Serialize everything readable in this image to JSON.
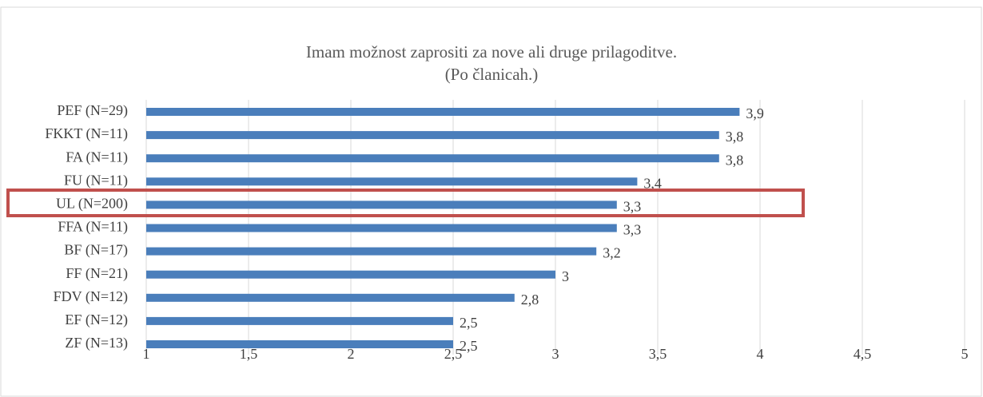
{
  "chart_data": {
    "type": "bar",
    "orientation": "horizontal",
    "title": "Imam možnost zaprositi za nove ali druge prilagoditve.",
    "subtitle": "(Po članicah.)",
    "categories": [
      "PEF (N=29)",
      "FKKT (N=11)",
      "FA (N=11)",
      "FU (N=11)",
      "UL (N=200)",
      "FFA (N=11)",
      "BF (N=17)",
      "FF (N=21)",
      "FDV (N=12)",
      "EF (N=12)",
      "ZF (N=13)"
    ],
    "values": [
      3.9,
      3.8,
      3.8,
      3.4,
      3.3,
      3.3,
      3.2,
      3,
      2.8,
      2.5,
      2.5
    ],
    "value_labels": [
      "3,9",
      "3,8",
      "3,8",
      "3,4",
      "3,3",
      "3,3",
      "3,2",
      "3",
      "2,8",
      "2,5",
      "2,5"
    ],
    "color": "#4a7ebb",
    "xlim": [
      1,
      5
    ],
    "xticks": [
      1,
      {
        "value": 1.5,
        "label": "1,5"
      },
      2,
      {
        "value": 2.5,
        "label": "2,5"
      },
      3,
      {
        "value": 3.5,
        "label": "3,5"
      },
      4,
      {
        "value": 4.5,
        "label": "4,5"
      },
      5
    ],
    "grid": true
  }
}
